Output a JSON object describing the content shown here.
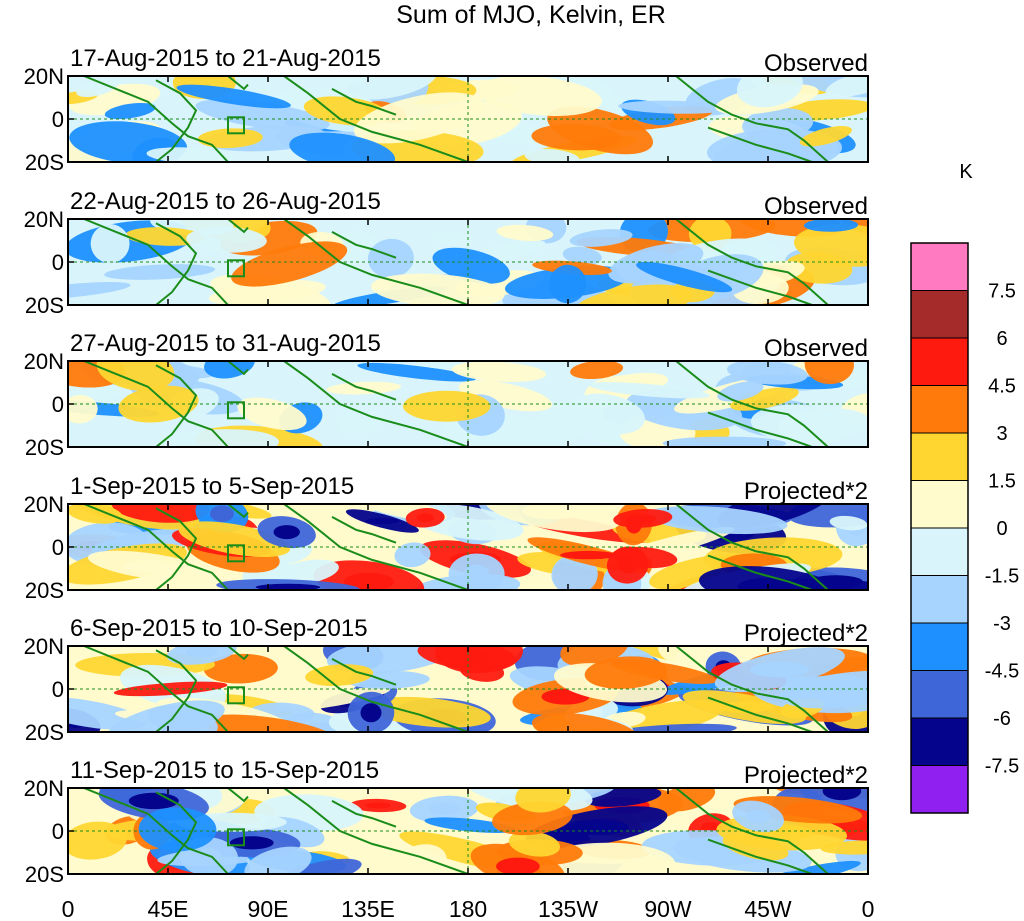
{
  "figure": {
    "title": "Sum of MJO, Kelvin, ER",
    "units": "K"
  },
  "panels": [
    {
      "date_range": "17-Aug-2015 to 21-Aug-2015",
      "label": "Observed"
    },
    {
      "date_range": "22-Aug-2015 to 26-Aug-2015",
      "label": "Observed"
    },
    {
      "date_range": "27-Aug-2015 to 31-Aug-2015",
      "label": "Observed"
    },
    {
      "date_range": "1-Sep-2015 to 5-Sep-2015",
      "label": "Projected*2"
    },
    {
      "date_range": "6-Sep-2015 to 10-Sep-2015",
      "label": "Projected*2"
    },
    {
      "date_range": "11-Sep-2015 to 15-Sep-2015",
      "label": "Projected*2"
    }
  ],
  "axes": {
    "lat_labels": [
      "20N",
      "0",
      "20S"
    ],
    "lon_labels": [
      "0",
      "45E",
      "90E",
      "135E",
      "180",
      "135W",
      "90W",
      "45W",
      "0"
    ]
  },
  "colorbar": {
    "levels": [
      "7.5",
      "6",
      "4.5",
      "3",
      "1.5",
      "0",
      "-1.5",
      "-3",
      "-4.5",
      "-6",
      "-7.5"
    ],
    "colors": [
      "#ff7ac0",
      "#a52a2a",
      "#ff1a10",
      "#ff7a0a",
      "#ffd630",
      "#fffbcc",
      "#d9f5fb",
      "#a6d4ff",
      "#1e90ff",
      "#3f66d9",
      "#04048c",
      "#9020f0"
    ]
  },
  "colors": {
    "coast": "#1a8c1a",
    "frame": "#000000"
  }
}
